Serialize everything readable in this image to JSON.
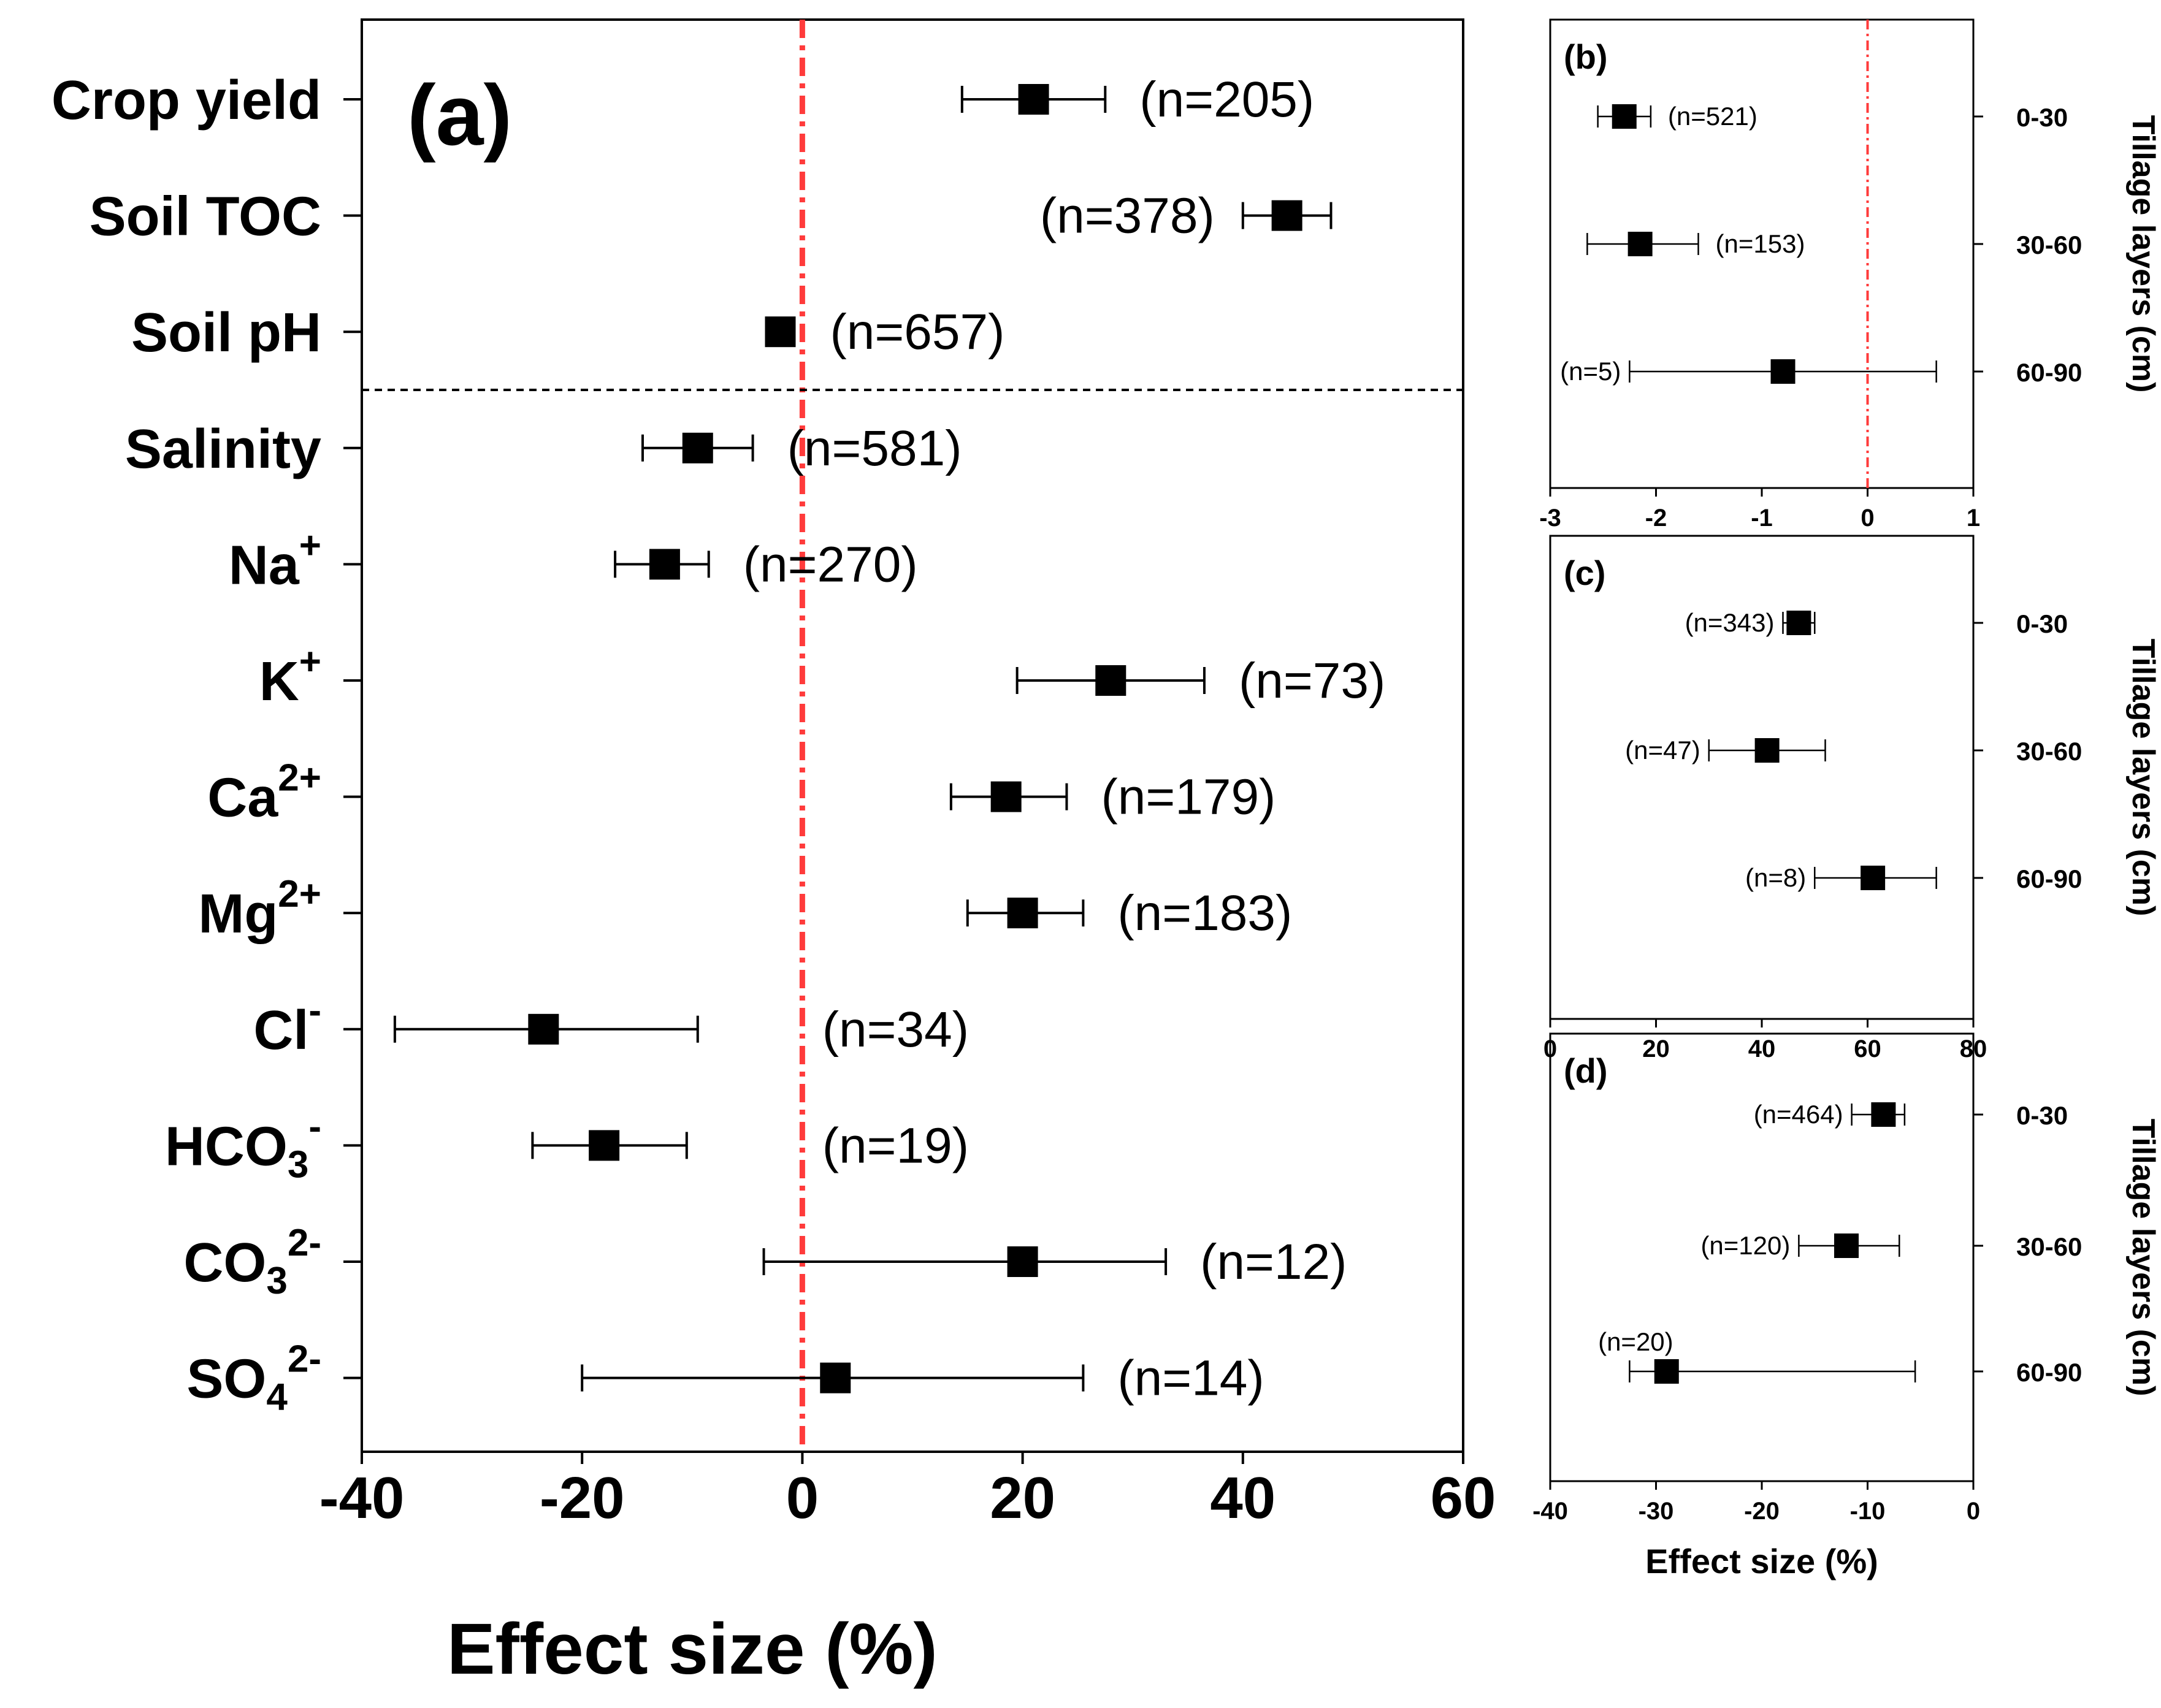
{
  "chart_data": [
    {
      "id": "a",
      "type": "forest",
      "panel_label": "(a)",
      "xlabel": "Effect size (%)",
      "xlim": [
        -40,
        60
      ],
      "xticks": [
        "-40",
        "-20",
        "0",
        "20",
        "40",
        "60"
      ],
      "reference_line": 0,
      "separator_after_row": 3,
      "rows": [
        {
          "label": "Crop yield",
          "sup": "",
          "sub": "",
          "mean": 21,
          "lo": 14.5,
          "hi": 27.5,
          "n": "(n=205)",
          "n_side": "right"
        },
        {
          "label": "Soil TOC",
          "sup": "",
          "sub": "",
          "mean": 44,
          "lo": 40,
          "hi": 48,
          "n": "(n=378)",
          "n_side": "left"
        },
        {
          "label": "Soil pH",
          "sup": "",
          "sub": "",
          "mean": -2,
          "lo": -2,
          "hi": -2,
          "n": "(n=657)",
          "n_side": "right"
        },
        {
          "label": "Salinity",
          "sup": "",
          "sub": "",
          "mean": -9.5,
          "lo": -14.5,
          "hi": -4.5,
          "n": "(n=581)",
          "n_side": "right"
        },
        {
          "label": "Na",
          "sup": "+",
          "sub": "",
          "mean": -12.5,
          "lo": -17,
          "hi": -8.5,
          "n": "(n=270)",
          "n_side": "right"
        },
        {
          "label": "K",
          "sup": "+",
          "sub": "",
          "mean": 28,
          "lo": 19.5,
          "hi": 36.5,
          "n": "(n=73)",
          "n_side": "right"
        },
        {
          "label": "Ca",
          "sup": "2+",
          "sub": "",
          "mean": 18.5,
          "lo": 13.5,
          "hi": 24,
          "n": "(n=179)",
          "n_side": "right"
        },
        {
          "label": "Mg",
          "sup": "2+",
          "sub": "",
          "mean": 20,
          "lo": 15,
          "hi": 25.5,
          "n": "(n=183)",
          "n_side": "right"
        },
        {
          "label": "Cl",
          "sup": "-",
          "sub": "",
          "mean": -23.5,
          "lo": -37,
          "hi": -9.5,
          "n": "(n=34)",
          "n_side": "right"
        },
        {
          "label": "HCO",
          "sup": "-",
          "sub": "3",
          "mean": -18,
          "lo": -24.5,
          "hi": -10.5,
          "n": "(n=19)",
          "n_side": "right"
        },
        {
          "label": "CO",
          "sup": "2-",
          "sub": "3",
          "mean": 20,
          "lo": -3.5,
          "hi": 33,
          "n": "(n=12)",
          "n_side": "right"
        },
        {
          "label": "SO",
          "sup": "2-",
          "sub": "4",
          "mean": 3,
          "lo": -20,
          "hi": 25.5,
          "n": "(n=14)",
          "n_side": "right"
        }
      ]
    },
    {
      "id": "b",
      "type": "forest",
      "panel_label": "(b)",
      "ylabel": "Tillage layers (cm)",
      "xlabel": "",
      "xlim": [
        -3,
        1
      ],
      "xticks": [
        "-3",
        "-2",
        "-1",
        "0",
        "1"
      ],
      "reference_line": 0,
      "rows": [
        {
          "label": "0-30",
          "mean": -2.3,
          "lo": -2.55,
          "hi": -2.05,
          "n": "(n=521)",
          "n_side": "right"
        },
        {
          "label": "30-60",
          "mean": -2.15,
          "lo": -2.65,
          "hi": -1.6,
          "n": "(n=153)",
          "n_side": "right"
        },
        {
          "label": "60-90",
          "mean": -0.8,
          "lo": -2.25,
          "hi": 0.65,
          "n": "(n=5)",
          "n_side": "left"
        }
      ]
    },
    {
      "id": "c",
      "type": "forest",
      "panel_label": "(c)",
      "ylabel": "Tillage layers (cm)",
      "xlabel": "",
      "xlim": [
        0,
        80
      ],
      "xticks": [
        "0",
        "20",
        "40",
        "60",
        "80"
      ],
      "reference_line": null,
      "rows": [
        {
          "label": "0-30",
          "mean": 47,
          "lo": 44,
          "hi": 50,
          "n": "(n=343)",
          "n_side": "left"
        },
        {
          "label": "30-60",
          "mean": 41,
          "lo": 30,
          "hi": 52,
          "n": "(n=47)",
          "n_side": "left"
        },
        {
          "label": "60-90",
          "mean": 61,
          "lo": 50,
          "hi": 73,
          "n": "(n=8)",
          "n_side": "left"
        }
      ]
    },
    {
      "id": "d",
      "type": "forest",
      "panel_label": "(d)",
      "ylabel": "Tillage layers (cm)",
      "xlabel": "Effect size (%)",
      "xlim": [
        -40,
        0
      ],
      "xticks": [
        "-40",
        "-30",
        "-20",
        "-10",
        "0"
      ],
      "reference_line": null,
      "rows": [
        {
          "label": "0-30",
          "mean": -8.5,
          "lo": -11.5,
          "hi": -6.5,
          "n": "(n=464)",
          "n_side": "left"
        },
        {
          "label": "30-60",
          "mean": -12,
          "lo": -16.5,
          "hi": -7,
          "n": "(n=120)",
          "n_side": "left"
        },
        {
          "label": "60-90",
          "mean": -29,
          "lo": -32.5,
          "hi": -5.5,
          "n": "(n=20)",
          "n_side": "above"
        }
      ]
    }
  ]
}
